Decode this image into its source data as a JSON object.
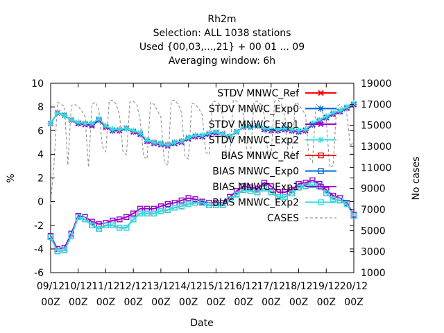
{
  "chart_data": {
    "type": "line",
    "title_lines": [
      "Rh2m",
      "Selection: ALL    1038 stations",
      "Used {00,03,...,21} + 00 01 ... 09",
      "Averaging window:  6h"
    ],
    "xlabel": "Date",
    "ylabel": "%",
    "y2label": "No cases",
    "ylim": [
      -6,
      10
    ],
    "yticks": [
      -6,
      -4,
      -2,
      0,
      2,
      4,
      6,
      8,
      10
    ],
    "y2lim": [
      1000,
      19000
    ],
    "y2ticks": [
      1000,
      3000,
      5000,
      7000,
      9000,
      11000,
      13000,
      15000,
      17000,
      19000
    ],
    "xlim": [
      0,
      264
    ],
    "xticks": [
      {
        "x": 0,
        "day": "09/12",
        "hour": "00Z"
      },
      {
        "x": 24,
        "day": "10/12",
        "hour": "00Z"
      },
      {
        "x": 48,
        "day": "11/12",
        "hour": "00Z"
      },
      {
        "x": 72,
        "day": "12/12",
        "hour": "00Z"
      },
      {
        "x": 96,
        "day": "13/12",
        "hour": "00Z"
      },
      {
        "x": 120,
        "day": "14/12",
        "hour": "00Z"
      },
      {
        "x": 144,
        "day": "15/12",
        "hour": "00Z"
      },
      {
        "x": 168,
        "day": "16/12",
        "hour": "00Z"
      },
      {
        "x": 192,
        "day": "17/12",
        "hour": "00Z"
      },
      {
        "x": 216,
        "day": "18/12",
        "hour": "00Z"
      },
      {
        "x": 240,
        "day": "19/12",
        "hour": "00Z"
      },
      {
        "x": 264,
        "day": "20/12",
        "hour": "00Z"
      }
    ],
    "legend_position": "top-right",
    "x": [
      0,
      6,
      12,
      18,
      24,
      30,
      36,
      42,
      48,
      54,
      60,
      66,
      72,
      78,
      84,
      90,
      96,
      102,
      108,
      114,
      120,
      126,
      132,
      138,
      144,
      150,
      156,
      162,
      168,
      174,
      180,
      186,
      192,
      198,
      204,
      210,
      216,
      222,
      228,
      234,
      240,
      246,
      252,
      258,
      264
    ],
    "series": [
      {
        "name": "STDV MNWC_Ref",
        "color": "#ff0000",
        "marker": "x",
        "axis": "y1",
        "values": [
          6.6,
          7.5,
          7.3,
          6.9,
          6.6,
          6.6,
          6.5,
          6.9,
          6.3,
          6.0,
          6.0,
          6.2,
          5.9,
          5.7,
          5.1,
          5.0,
          4.9,
          4.8,
          5.0,
          5.1,
          5.4,
          5.5,
          5.5,
          5.7,
          5.8,
          5.7,
          5.5,
          5.9,
          6.3,
          6.3,
          6.4,
          6.1,
          6.0,
          6.0,
          6.1,
          6.0,
          5.9,
          6.0,
          6.5,
          6.8,
          7.1,
          7.4,
          7.6,
          7.9,
          8.2
        ]
      },
      {
        "name": "STDV MNWC_Exp0",
        "color": "#0066cc",
        "marker": "star",
        "axis": "y1",
        "values": [
          6.6,
          7.5,
          7.3,
          6.9,
          6.6,
          6.6,
          6.5,
          6.9,
          6.3,
          6.0,
          6.0,
          6.2,
          5.9,
          5.7,
          5.1,
          5.0,
          4.9,
          4.8,
          5.0,
          5.1,
          5.4,
          5.5,
          5.5,
          5.7,
          5.8,
          5.7,
          5.5,
          5.9,
          6.3,
          6.3,
          6.4,
          6.1,
          6.0,
          6.0,
          6.1,
          6.0,
          5.9,
          6.0,
          6.5,
          6.8,
          7.1,
          7.4,
          7.6,
          7.9,
          8.2
        ]
      },
      {
        "name": "STDV MNWC_Exp1",
        "color": "#9900cc",
        "marker": "x",
        "axis": "y1",
        "values": [
          6.6,
          7.5,
          7.3,
          6.9,
          6.6,
          6.5,
          6.4,
          6.9,
          6.3,
          6.0,
          6.0,
          6.2,
          5.9,
          5.7,
          5.1,
          4.9,
          4.8,
          4.7,
          4.9,
          5.0,
          5.3,
          5.5,
          5.5,
          5.7,
          5.8,
          5.7,
          5.5,
          5.9,
          6.3,
          6.3,
          6.4,
          6.1,
          6.0,
          6.0,
          6.1,
          6.0,
          5.9,
          6.0,
          6.5,
          6.8,
          7.1,
          7.4,
          7.6,
          7.9,
          8.2
        ]
      },
      {
        "name": "STDV MNWC_Exp2",
        "color": "#33dddd",
        "marker": "star",
        "axis": "y1",
        "values": [
          6.6,
          7.5,
          7.3,
          6.9,
          6.7,
          6.6,
          6.6,
          7.0,
          6.4,
          6.1,
          6.1,
          6.2,
          6.0,
          5.8,
          5.2,
          5.0,
          4.9,
          4.8,
          5.0,
          5.1,
          5.4,
          5.6,
          5.6,
          5.8,
          5.9,
          5.7,
          5.5,
          5.9,
          6.3,
          6.3,
          6.4,
          6.2,
          6.1,
          6.1,
          6.2,
          6.1,
          6.0,
          6.1,
          6.6,
          6.9,
          7.2,
          7.5,
          7.7,
          8.0,
          8.3
        ]
      },
      {
        "name": "BIAS MNWC_Ref",
        "color": "#ff0000",
        "marker": "square",
        "axis": "y1",
        "values": [
          -3.0,
          -4.2,
          -4.1,
          -2.9,
          -1.3,
          -1.5,
          -2.0,
          -2.3,
          -2.0,
          -2.0,
          -2.2,
          -2.2,
          -1.5,
          -1.0,
          -1.0,
          -1.0,
          -0.8,
          -0.7,
          -0.5,
          -0.4,
          -0.2,
          -0.1,
          -0.1,
          -0.3,
          -0.3,
          -0.3,
          0.2,
          0.6,
          1.0,
          0.9,
          0.8,
          1.1,
          0.8,
          0.4,
          0.4,
          0.7,
          1.2,
          1.3,
          1.4,
          1.3,
          0.7,
          0.2,
          0.1,
          -0.2,
          -1.2
        ]
      },
      {
        "name": "BIAS MNWC_Exp0",
        "color": "#0066cc",
        "marker": "square",
        "axis": "y1",
        "values": [
          -3.0,
          -4.2,
          -4.1,
          -2.9,
          -1.3,
          -1.5,
          -2.0,
          -2.3,
          -2.0,
          -2.0,
          -2.2,
          -2.2,
          -1.5,
          -1.0,
          -1.0,
          -1.0,
          -0.8,
          -0.7,
          -0.5,
          -0.4,
          -0.2,
          -0.1,
          -0.1,
          -0.3,
          -0.3,
          -0.3,
          0.2,
          0.6,
          1.0,
          0.9,
          0.8,
          1.1,
          0.8,
          0.4,
          0.4,
          0.7,
          1.2,
          1.3,
          1.4,
          1.3,
          0.7,
          0.2,
          0.1,
          -0.2,
          -1.2
        ]
      },
      {
        "name": "BIAS MNWC_Exp1",
        "color": "#9900cc",
        "marker": "square",
        "axis": "y1",
        "values": [
          -2.9,
          -4.0,
          -3.9,
          -2.7,
          -1.2,
          -1.3,
          -1.7,
          -1.9,
          -1.8,
          -1.6,
          -1.5,
          -1.3,
          -1.0,
          -0.6,
          -0.6,
          -0.6,
          -0.4,
          -0.2,
          -0.1,
          0.1,
          0.3,
          0.2,
          0.0,
          -0.1,
          -0.1,
          -0.1,
          0.4,
          0.9,
          1.3,
          1.2,
          1.1,
          1.6,
          1.3,
          0.8,
          0.8,
          1.0,
          1.5,
          1.6,
          1.8,
          1.5,
          1.0,
          0.5,
          0.3,
          -0.1,
          -1.1
        ]
      },
      {
        "name": "BIAS MNWC_Exp2",
        "color": "#33dddd",
        "marker": "square",
        "axis": "y1",
        "values": [
          -3.0,
          -4.2,
          -4.1,
          -2.9,
          -1.3,
          -1.5,
          -2.0,
          -2.3,
          -2.0,
          -2.0,
          -2.2,
          -2.2,
          -1.5,
          -1.0,
          -1.0,
          -1.0,
          -0.8,
          -0.7,
          -0.5,
          -0.4,
          -0.2,
          -0.1,
          -0.1,
          -0.3,
          -0.3,
          -0.3,
          0.2,
          0.6,
          1.0,
          0.9,
          0.8,
          1.1,
          0.8,
          0.4,
          0.4,
          0.7,
          1.2,
          1.3,
          1.4,
          1.3,
          0.7,
          0.2,
          0.1,
          -0.2,
          -1.2
        ]
      }
    ],
    "cases": {
      "name": "CASES",
      "color": "#999999",
      "dash": true,
      "axis": "y2",
      "x": [
        0,
        3,
        6,
        9,
        12,
        15,
        18,
        21,
        24,
        27,
        30,
        33,
        36,
        39,
        42,
        45,
        48,
        51,
        54,
        57,
        60,
        63,
        66,
        69,
        72,
        75,
        78,
        81,
        84,
        87,
        90,
        93,
        96,
        99,
        102,
        105,
        108,
        111,
        114,
        117,
        120,
        123,
        126,
        129,
        132,
        135,
        138,
        141,
        144,
        147,
        150,
        153,
        156,
        159,
        162,
        165,
        168,
        171,
        174,
        177,
        180,
        183,
        186,
        189,
        192,
        195,
        198,
        201,
        204,
        207,
        210,
        213,
        216,
        219,
        222,
        225,
        228,
        231,
        234,
        237,
        240,
        243,
        246,
        249,
        252,
        255,
        258,
        261,
        264
      ],
      "values": [
        7500,
        11500,
        17200,
        17000,
        16800,
        11200,
        16900,
        17000,
        16800,
        16400,
        15800,
        11000,
        17000,
        17200,
        16500,
        13000,
        12500,
        17300,
        17400,
        17000,
        16000,
        12500,
        12200,
        17200,
        17300,
        17000,
        15500,
        12000,
        11800,
        17200,
        17000,
        16400,
        15800,
        11500,
        11200,
        17300,
        17400,
        17000,
        16200,
        12000,
        11800,
        17100,
        17000,
        16600,
        16000,
        12500,
        12200,
        17200,
        17300,
        17000,
        15800,
        12200,
        12000,
        17400,
        17300,
        16800,
        16000,
        12500,
        12000,
        17200,
        17300,
        17000,
        16000,
        12500,
        12200,
        17300,
        17400,
        17000,
        15800,
        12000,
        11800,
        17200,
        17000,
        16500,
        16000,
        12000,
        11500,
        17000,
        16800,
        16200,
        15500,
        11000,
        11200,
        16800,
        17000,
        16500,
        16000,
        13000,
        13500
      ]
    }
  }
}
